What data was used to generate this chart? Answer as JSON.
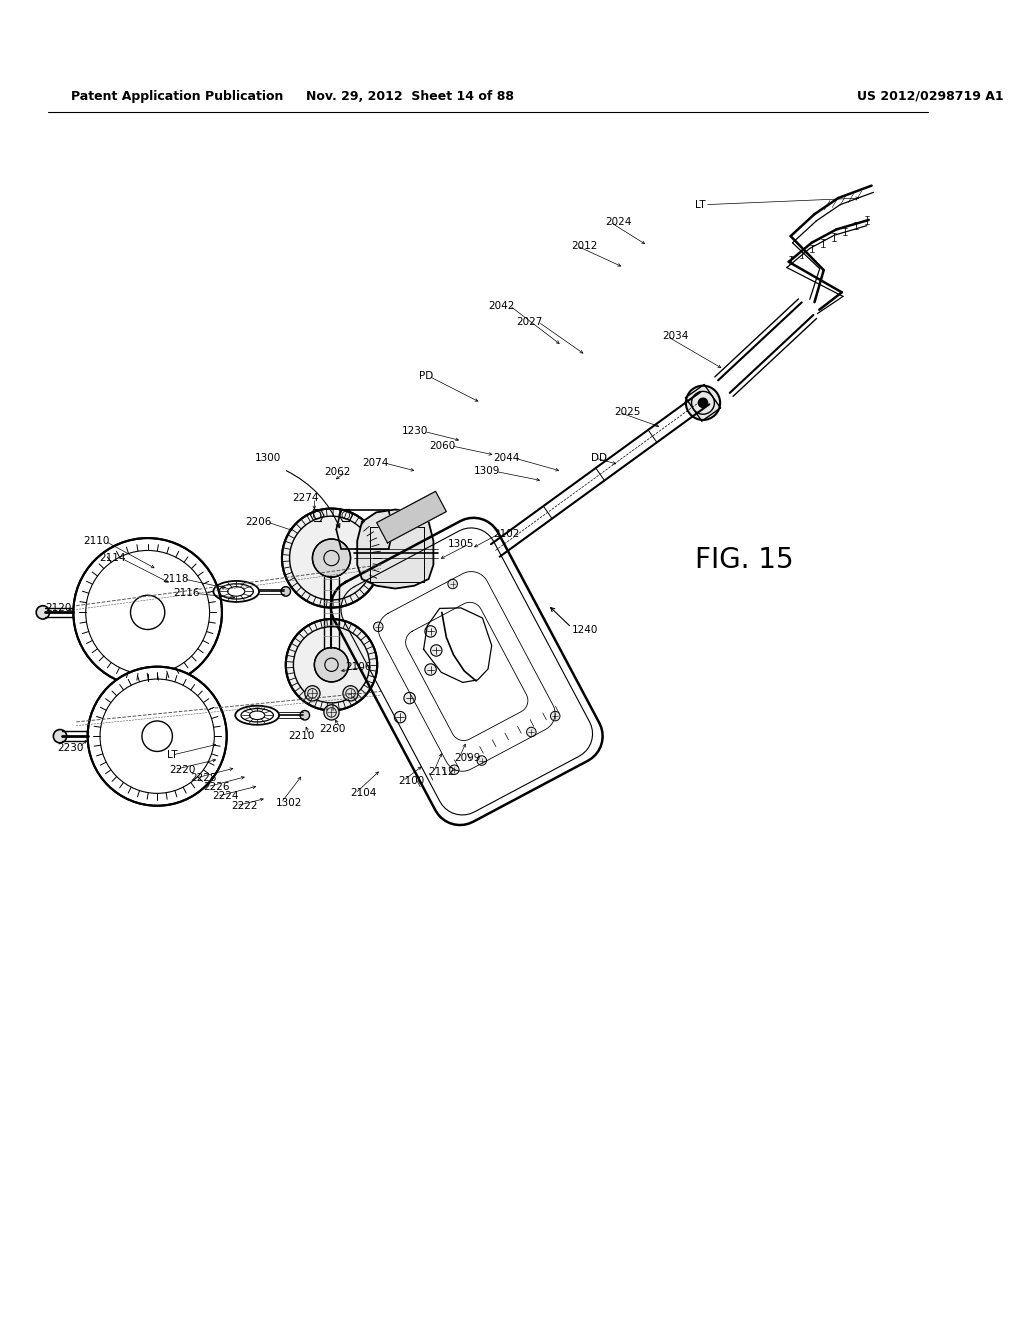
{
  "title_left": "Patent Application Publication",
  "title_mid": "Nov. 29, 2012  Sheet 14 of 88",
  "title_right": "US 2012/0298719 A1",
  "fig_label": "FIG. 15",
  "bg_color": "#ffffff"
}
